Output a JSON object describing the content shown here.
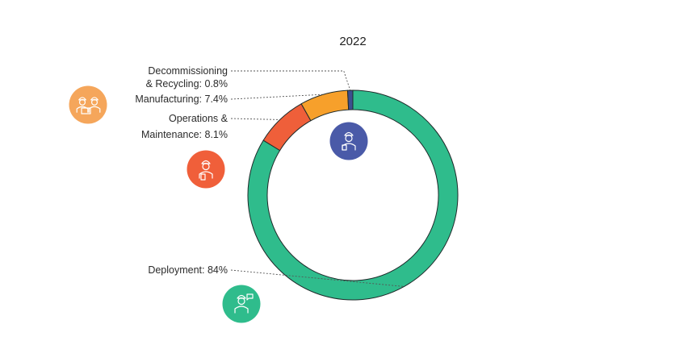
{
  "chart_data": {
    "type": "pie",
    "title": "2022",
    "slices": [
      {
        "label": "Decommissioning & Recycling",
        "label_lines": [
          "Decommissioning",
          "& Recycling: 0.8%"
        ],
        "value": 0.8,
        "color": "#3d4f8f",
        "icon": "worker-with-clipboard-icon",
        "icon_color": "#4a5aa8"
      },
      {
        "label": "Manufacturing",
        "label_lines": [
          "Manufacturing: 7.4%"
        ],
        "value": 7.4,
        "color": "#f7a02b",
        "icon": "two-workers-with-laptop-icon",
        "icon_color": "#f5a65b"
      },
      {
        "label": "Operations & Maintenance",
        "label_lines": [
          "Operations &",
          "Maintenance: 8.1%"
        ],
        "value": 8.1,
        "color": "#ef5f3a",
        "icon": "worker-with-tablet-icon",
        "icon_color": "#f05f3a"
      },
      {
        "label": "Deployment",
        "label_lines": [
          "Deployment: 84%"
        ],
        "value": 84,
        "color": "#2fbc8c",
        "icon": "worker-with-megaphone-icon",
        "icon_color": "#2fbc8c"
      }
    ],
    "donut": true,
    "legend": "leader-line labels on left"
  }
}
